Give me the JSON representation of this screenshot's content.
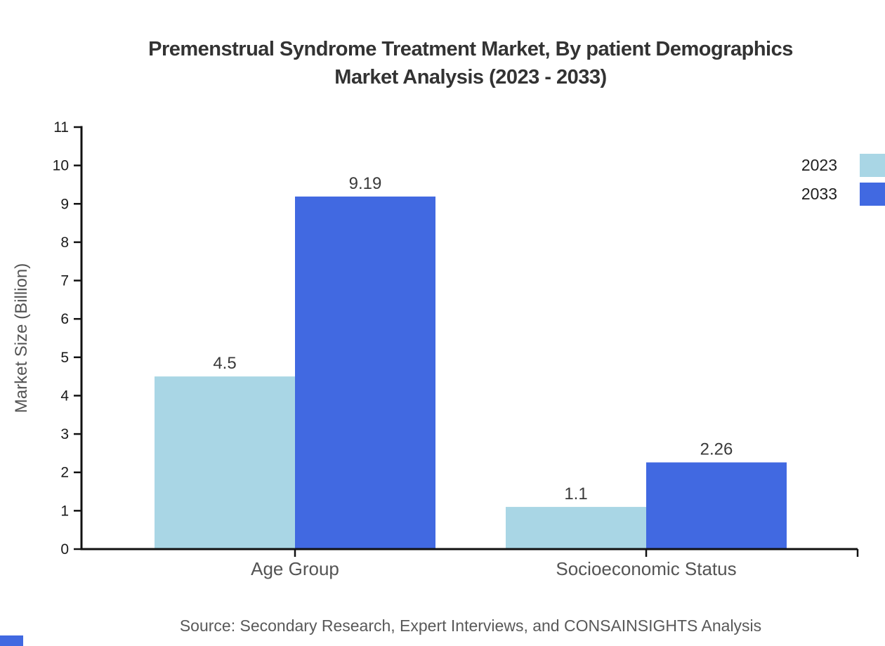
{
  "title": {
    "line1": "Premenstrual Syndrome Treatment Market, By patient Demographics",
    "line2": "Market Analysis (2023 - 2033)"
  },
  "source_note": "Source: Secondary Research, Expert Interviews, and CONSAINSIGHTS Analysis",
  "colors": {
    "series_2023": "#a9d6e5",
    "series_2033": "#4169e1",
    "axis": "#111111",
    "title_text": "#333333",
    "gray_text": "#545454",
    "corner_accent": "#4169e1"
  },
  "chart_data": {
    "type": "bar",
    "title": "Premenstrual Syndrome Treatment Market, By patient Demographics Market Analysis (2023 - 2033)",
    "categories": [
      "Age Group",
      "Socioeconomic Status"
    ],
    "series": [
      {
        "name": "2023",
        "color": "#a9d6e5",
        "values": [
          4.5,
          1.1
        ],
        "labels": [
          "4.5",
          "1.1"
        ]
      },
      {
        "name": "2033",
        "color": "#4169e1",
        "values": [
          9.19,
          2.26
        ],
        "labels": [
          "9.19",
          "2.26"
        ]
      }
    ],
    "xlabel": "",
    "ylabel": "Market Size (Billion)",
    "ylim": [
      0,
      11
    ],
    "yticks": [
      0,
      1,
      2,
      3,
      4,
      5,
      6,
      7,
      8,
      9,
      10,
      11
    ],
    "grid": false,
    "legend_position": "top-right",
    "bar_value_labels_shown": true
  }
}
